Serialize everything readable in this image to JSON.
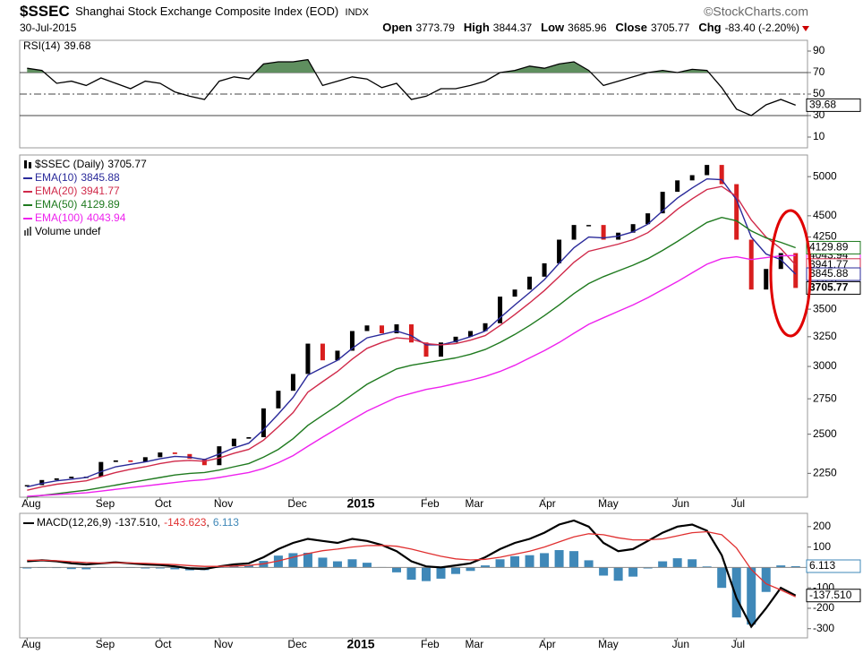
{
  "chart_data": [
    {
      "type": "line",
      "title": "$SSEC",
      "subtitle": "Shanghai Stock Exchange Composite Index (EOD)",
      "exchange": "INDX",
      "source": "©StockCharts.com",
      "date": "30-Jul-2015",
      "quote": [
        {
          "label": "Open",
          "value": "3773.79"
        },
        {
          "label": "High",
          "value": "3844.37"
        },
        {
          "label": "Low",
          "value": "3685.96"
        },
        {
          "label": "Close",
          "value": "3705.77"
        },
        {
          "label": "Chg",
          "value": "-83.40 (-2.20%)"
        }
      ],
      "categories": [
        "Aug",
        null,
        null,
        null,
        null,
        "Sep",
        null,
        null,
        null,
        "Oct",
        null,
        null,
        null,
        "Nov",
        null,
        null,
        null,
        null,
        "Dec",
        null,
        null,
        null,
        "2015",
        null,
        null,
        null,
        null,
        "Feb",
        null,
        null,
        "Mar",
        null,
        null,
        null,
        null,
        "Apr",
        null,
        null,
        null,
        "May",
        null,
        null,
        null,
        null,
        "Jun",
        null,
        null,
        null,
        "Jul",
        null,
        null,
        null,
        null
      ],
      "log_scale": true,
      "ylim": [
        2110,
        5300
      ],
      "yticks": [
        2250,
        2500,
        2750,
        3000,
        3250,
        3500,
        3750,
        4000,
        4250,
        4500,
        5000
      ],
      "volume_label": "Volume undef",
      "series": [
        {
          "name": "$SSEC (Daily)",
          "style": "candle",
          "color": "#000000",
          "down_color": "#d81e1e",
          "values": [
            2180,
            2210,
            2220,
            2230,
            2230,
            2320,
            2330,
            2320,
            2350,
            2380,
            2370,
            2340,
            2300,
            2420,
            2470,
            2480,
            2680,
            2810,
            2940,
            3190,
            3050,
            3130,
            3300,
            3350,
            3280,
            3360,
            3200,
            3080,
            3200,
            3250,
            3300,
            3370,
            3620,
            3690,
            3820,
            3960,
            4220,
            4390,
            4390,
            4220,
            4300,
            4400,
            4530,
            4800,
            4950,
            5020,
            5160,
            4900,
            4220,
            3690,
            3900,
            4070,
            3705.77
          ]
        },
        {
          "name": "EMA(10)",
          "color": "#2a2a9a",
          "values": [
            2170,
            2190,
            2205,
            2215,
            2225,
            2260,
            2290,
            2305,
            2320,
            2340,
            2355,
            2350,
            2335,
            2370,
            2410,
            2440,
            2530,
            2640,
            2760,
            2930,
            2990,
            3050,
            3150,
            3240,
            3270,
            3300,
            3260,
            3180,
            3180,
            3210,
            3250,
            3300,
            3420,
            3540,
            3660,
            3790,
            3960,
            4130,
            4250,
            4240,
            4260,
            4310,
            4400,
            4560,
            4720,
            4850,
            4970,
            4960,
            4700,
            4250,
            4060,
            4000,
            3845.88
          ]
        },
        {
          "name": "EMA(20)",
          "color": "#d02a4a",
          "values": [
            2150,
            2170,
            2185,
            2195,
            2205,
            2230,
            2255,
            2275,
            2290,
            2310,
            2325,
            2330,
            2325,
            2345,
            2375,
            2400,
            2460,
            2550,
            2650,
            2800,
            2880,
            2960,
            3060,
            3150,
            3200,
            3240,
            3230,
            3190,
            3180,
            3190,
            3220,
            3260,
            3350,
            3450,
            3560,
            3680,
            3820,
            3970,
            4090,
            4130,
            4170,
            4220,
            4300,
            4430,
            4580,
            4710,
            4830,
            4870,
            4740,
            4450,
            4250,
            4120,
            3941.77
          ]
        },
        {
          "name": "EMA(50)",
          "color": "#1f7a1f",
          "values": [
            2110,
            2120,
            2130,
            2140,
            2150,
            2165,
            2180,
            2195,
            2210,
            2225,
            2240,
            2250,
            2255,
            2270,
            2290,
            2310,
            2350,
            2400,
            2470,
            2560,
            2630,
            2700,
            2780,
            2860,
            2920,
            2980,
            3010,
            3030,
            3050,
            3070,
            3100,
            3140,
            3200,
            3270,
            3350,
            3440,
            3540,
            3650,
            3750,
            3820,
            3880,
            3940,
            4010,
            4100,
            4200,
            4310,
            4420,
            4480,
            4440,
            4320,
            4240,
            4190,
            4129.89
          ]
        },
        {
          "name": "EMA(100)",
          "color": "#ee22ee",
          "values": [
            2115,
            2120,
            2125,
            2130,
            2135,
            2145,
            2155,
            2165,
            2175,
            2185,
            2195,
            2205,
            2212,
            2225,
            2240,
            2255,
            2280,
            2315,
            2360,
            2420,
            2480,
            2540,
            2600,
            2660,
            2710,
            2760,
            2790,
            2820,
            2840,
            2865,
            2890,
            2920,
            2960,
            3010,
            3070,
            3130,
            3200,
            3280,
            3360,
            3420,
            3480,
            3540,
            3610,
            3690,
            3770,
            3860,
            3950,
            4010,
            4030,
            4000,
            4020,
            4040,
            4043.94
          ]
        }
      ]
    },
    {
      "type": "line",
      "ylim": [
        0,
        100
      ],
      "yticks": [
        90,
        70,
        50,
        30,
        10
      ],
      "reference_lines": [
        70,
        50,
        30
      ],
      "fill_color": "#5f8f5f",
      "series": [
        {
          "name": "RSI(14)",
          "color": "#000000",
          "values": [
            74,
            72,
            60,
            62,
            58,
            65,
            60,
            55,
            62,
            60,
            52,
            48,
            45,
            62,
            66,
            64,
            78,
            80,
            80,
            82,
            58,
            62,
            66,
            64,
            56,
            60,
            45,
            48,
            55,
            55,
            58,
            62,
            70,
            72,
            76,
            74,
            78,
            80,
            72,
            58,
            62,
            66,
            70,
            72,
            70,
            73,
            72,
            56,
            36,
            30,
            40,
            45,
            39.68
          ]
        }
      ]
    },
    {
      "type": "line",
      "title": "MACD(12,26,9)",
      "separator": ",",
      "ylim": [
        -345,
        265
      ],
      "yticks": [
        200,
        100,
        -100,
        -200,
        -300
      ],
      "series": [
        {
          "color": "#000000",
          "last_label": "-137.510",
          "values": [
            30,
            35,
            30,
            20,
            15,
            20,
            25,
            20,
            15,
            12,
            5,
            -5,
            -8,
            5,
            15,
            20,
            50,
            90,
            120,
            140,
            130,
            120,
            140,
            130,
            110,
            80,
            30,
            5,
            0,
            10,
            20,
            50,
            90,
            120,
            140,
            170,
            210,
            230,
            200,
            120,
            80,
            90,
            130,
            170,
            200,
            210,
            180,
            60,
            -150,
            -290,
            -200,
            -100,
            -137.51
          ]
        },
        {
          "color": "#e03030",
          "last_label": "-143.623",
          "values": [
            35,
            35,
            33,
            28,
            24,
            22,
            23,
            22,
            20,
            17,
            14,
            9,
            5,
            5,
            7,
            10,
            18,
            32,
            50,
            68,
            82,
            90,
            100,
            107,
            108,
            104,
            90,
            72,
            55,
            42,
            37,
            40,
            50,
            65,
            80,
            100,
            125,
            150,
            165,
            160,
            145,
            135,
            135,
            140,
            155,
            170,
            175,
            160,
            95,
            -10,
            -80,
            -110,
            -143.623
          ]
        },
        {
          "color": "#3f88b8",
          "style": "bar",
          "values": [
            -5,
            0,
            -3,
            -8,
            -9,
            -2,
            2,
            -2,
            -5,
            -5,
            -9,
            -14,
            -13,
            0,
            8,
            10,
            32,
            58,
            70,
            72,
            48,
            30,
            40,
            23,
            2,
            -24,
            -60,
            -67,
            -55,
            -32,
            -17,
            10,
            40,
            55,
            60,
            70,
            85,
            80,
            35,
            -40,
            -65,
            -45,
            -5,
            30,
            45,
            40,
            5,
            -100,
            -245,
            -280,
            -120,
            10,
            6.113
          ]
        }
      ]
    }
  ]
}
